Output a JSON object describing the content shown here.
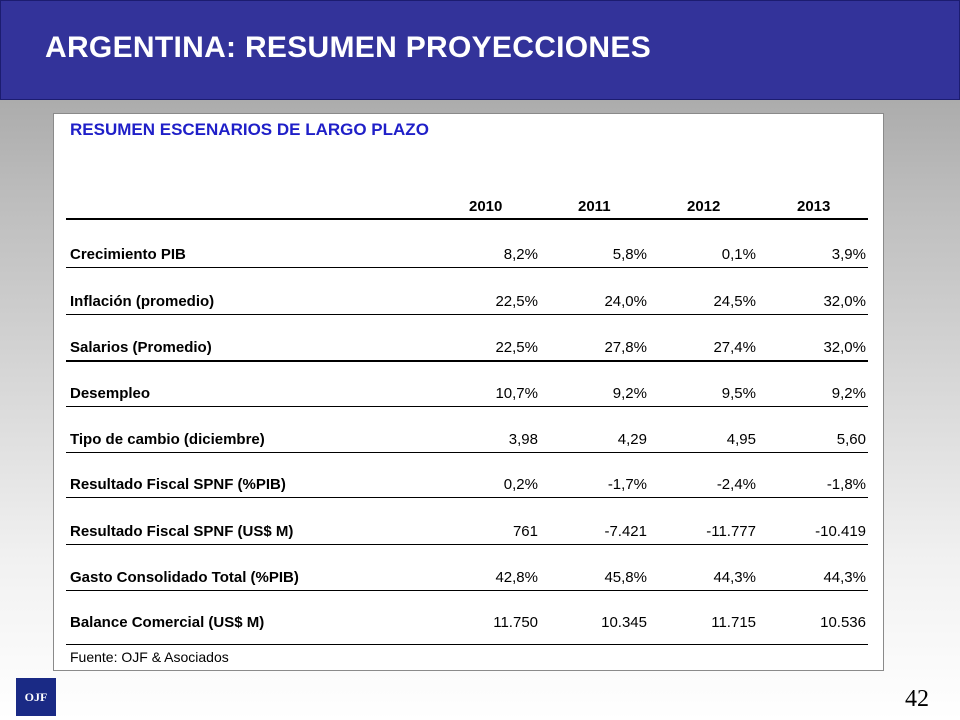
{
  "header": {
    "title": "ARGENTINA: RESUMEN PROYECCIONES"
  },
  "panel": {
    "title": "RESUMEN ESCENARIOS DE LARGO PLAZO",
    "years": [
      "2010",
      "2011",
      "2012",
      "2013"
    ],
    "rows": [
      {
        "label": "Crecimiento PIB",
        "values": [
          "8,2%",
          "5,8%",
          "0,1%",
          "3,9%"
        ]
      },
      {
        "label": "Inflación (promedio)",
        "values": [
          "22,5%",
          "24,0%",
          "24,5%",
          "32,0%"
        ]
      },
      {
        "label": "Salarios (Promedio)",
        "values": [
          "22,5%",
          "27,8%",
          "27,4%",
          "32,0%"
        ]
      },
      {
        "label": "Desempleo",
        "values": [
          "10,7%",
          "9,2%",
          "9,5%",
          "9,2%"
        ]
      },
      {
        "label": "Tipo de cambio (diciembre)",
        "values": [
          "3,98",
          "4,29",
          "4,95",
          "5,60"
        ]
      },
      {
        "label": "Resultado Fiscal SPNF (%PIB)",
        "values": [
          "0,2%",
          "-1,7%",
          "-2,4%",
          "-1,8%"
        ]
      },
      {
        "label": "Resultado Fiscal SPNF (US$ M)",
        "values": [
          "761",
          "-7.421",
          "-11.777",
          "-10.419"
        ]
      },
      {
        "label": "Gasto Consolidado Total (%PIB)",
        "values": [
          "42,8%",
          "45,8%",
          "44,3%",
          "44,3%"
        ]
      },
      {
        "label": "Balance Comercial (US$ M)",
        "values": [
          "11.750",
          "10.345",
          "11.715",
          "10.536"
        ]
      }
    ],
    "source": "Fuente: OJF & Asociados"
  },
  "footer": {
    "logo_text": "OJF",
    "page_number": "42"
  }
}
